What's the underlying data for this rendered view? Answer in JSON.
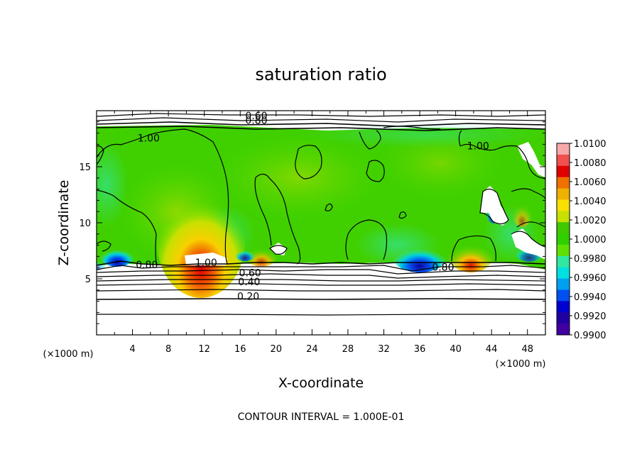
{
  "chart_data": {
    "type": "heatmap",
    "title": "saturation ratio",
    "xlabel": "X-coordinate",
    "ylabel": "Z-coordinate",
    "x_unit": "(×1000 m)",
    "y_unit": "(×1000 m)",
    "footer": "CONTOUR INTERVAL = 1.000E-01",
    "xlim": [
      0,
      50
    ],
    "ylim": [
      0,
      20
    ],
    "x_ticks": [
      4,
      8,
      12,
      16,
      20,
      24,
      28,
      32,
      36,
      40,
      44,
      48
    ],
    "y_ticks": [
      5,
      10,
      15
    ],
    "colorbar": {
      "min": 0.99,
      "max": 1.01,
      "labels": [
        "1.0100",
        "1.0080",
        "1.0060",
        "1.0040",
        "1.0020",
        "1.0000",
        "0.9980",
        "0.9960",
        "0.9940",
        "0.9920",
        "0.9900"
      ],
      "colors": [
        "#f8a8a8",
        "#f05050",
        "#e00000",
        "#f07000",
        "#f0b000",
        "#f8e000",
        "#c8e000",
        "#40c800",
        "#30d000",
        "#60e000",
        "#30e8a0",
        "#00e0e0",
        "#00a0f0",
        "#0050f0",
        "#0000d0",
        "#2000a0",
        "#4000a0"
      ]
    },
    "contour_labels": [
      {
        "text": "0.60",
        "x": 17.8,
        "y": 19.3
      },
      {
        "text": "0.80",
        "x": 17.8,
        "y": 18.9
      },
      {
        "text": "1.00",
        "x": 5.8,
        "y": 17.3
      },
      {
        "text": "1.00",
        "x": 42.5,
        "y": 16.6
      },
      {
        "text": "0.80",
        "x": 5.6,
        "y": 6.0
      },
      {
        "text": "1.00",
        "x": 12.2,
        "y": 6.2
      },
      {
        "text": "0.60",
        "x": 17.1,
        "y": 5.3
      },
      {
        "text": "0.40",
        "x": 17.0,
        "y": 4.5
      },
      {
        "text": "0.20",
        "x": 16.9,
        "y": 3.2
      },
      {
        "text": "0.80",
        "x": 38.6,
        "y": 5.8
      }
    ],
    "hotspots": [
      {
        "x": 11.8,
        "y": 7.0,
        "value": 1.0065
      },
      {
        "x": 41.5,
        "y": 6.8,
        "value": 1.005
      },
      {
        "x": 18.5,
        "y": 7.2,
        "value": 1.004
      },
      {
        "x": 35.0,
        "y": 7.0,
        "value": 0.992
      },
      {
        "x": 2.5,
        "y": 7.0,
        "value": 0.994
      }
    ]
  }
}
